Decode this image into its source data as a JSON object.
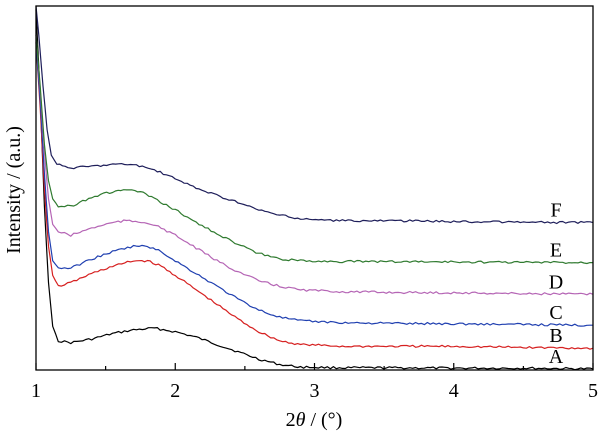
{
  "chart_data": {
    "type": "line",
    "xlabel": {
      "prefix": "2",
      "symbol": "θ",
      "suffix": " / (°)"
    },
    "ylabel": "Intensity / (a.u.)",
    "xlim": [
      1,
      5
    ],
    "ylim": [
      0,
      1
    ],
    "x_ticks": [
      1,
      2,
      3,
      4,
      5
    ],
    "y_ticks_shown": false,
    "grid": false,
    "series": [
      {
        "name": "A",
        "color": "#000000",
        "points": [
          [
            1.0,
            0.99
          ],
          [
            1.03,
            0.75
          ],
          [
            1.06,
            0.45
          ],
          [
            1.09,
            0.24
          ],
          [
            1.12,
            0.12
          ],
          [
            1.16,
            0.08
          ],
          [
            1.25,
            0.075
          ],
          [
            1.4,
            0.085
          ],
          [
            1.55,
            0.1
          ],
          [
            1.7,
            0.11
          ],
          [
            1.85,
            0.115
          ],
          [
            2.0,
            0.105
          ],
          [
            2.15,
            0.09
          ],
          [
            2.3,
            0.07
          ],
          [
            2.45,
            0.05
          ],
          [
            2.6,
            0.03
          ],
          [
            2.75,
            0.015
          ],
          [
            2.9,
            0.008
          ],
          [
            3.2,
            0.006
          ],
          [
            3.6,
            0.006
          ],
          [
            4.0,
            0.005
          ],
          [
            4.5,
            0.005
          ],
          [
            5.0,
            0.003
          ]
        ]
      },
      {
        "name": "B",
        "color": "#d62020",
        "points": [
          [
            1.0,
            0.9
          ],
          [
            1.03,
            0.72
          ],
          [
            1.06,
            0.5
          ],
          [
            1.09,
            0.34
          ],
          [
            1.12,
            0.26
          ],
          [
            1.16,
            0.23
          ],
          [
            1.25,
            0.24
          ],
          [
            1.4,
            0.265
          ],
          [
            1.55,
            0.285
          ],
          [
            1.7,
            0.3
          ],
          [
            1.8,
            0.3
          ],
          [
            1.9,
            0.285
          ],
          [
            2.0,
            0.26
          ],
          [
            2.15,
            0.22
          ],
          [
            2.3,
            0.18
          ],
          [
            2.45,
            0.14
          ],
          [
            2.6,
            0.105
          ],
          [
            2.75,
            0.08
          ],
          [
            2.9,
            0.07
          ],
          [
            3.2,
            0.065
          ],
          [
            3.6,
            0.065
          ],
          [
            4.0,
            0.065
          ],
          [
            4.5,
            0.062
          ],
          [
            5.0,
            0.06
          ]
        ]
      },
      {
        "name": "C",
        "color": "#1f3fb0",
        "points": [
          [
            1.0,
            0.9
          ],
          [
            1.03,
            0.74
          ],
          [
            1.06,
            0.54
          ],
          [
            1.09,
            0.38
          ],
          [
            1.12,
            0.3
          ],
          [
            1.16,
            0.28
          ],
          [
            1.25,
            0.28
          ],
          [
            1.4,
            0.305
          ],
          [
            1.55,
            0.325
          ],
          [
            1.7,
            0.34
          ],
          [
            1.8,
            0.34
          ],
          [
            1.9,
            0.325
          ],
          [
            2.0,
            0.3
          ],
          [
            2.15,
            0.265
          ],
          [
            2.3,
            0.23
          ],
          [
            2.45,
            0.195
          ],
          [
            2.6,
            0.165
          ],
          [
            2.75,
            0.145
          ],
          [
            2.9,
            0.135
          ],
          [
            3.2,
            0.13
          ],
          [
            3.6,
            0.128
          ],
          [
            4.0,
            0.127
          ],
          [
            4.5,
            0.125
          ],
          [
            5.0,
            0.123
          ]
        ]
      },
      {
        "name": "D",
        "color": "#b565b5",
        "points": [
          [
            1.0,
            0.92
          ],
          [
            1.03,
            0.77
          ],
          [
            1.06,
            0.6
          ],
          [
            1.09,
            0.47
          ],
          [
            1.12,
            0.4
          ],
          [
            1.16,
            0.38
          ],
          [
            1.25,
            0.37
          ],
          [
            1.4,
            0.39
          ],
          [
            1.55,
            0.405
          ],
          [
            1.65,
            0.41
          ],
          [
            1.8,
            0.405
          ],
          [
            1.9,
            0.39
          ],
          [
            2.0,
            0.37
          ],
          [
            2.15,
            0.335
          ],
          [
            2.3,
            0.3
          ],
          [
            2.45,
            0.27
          ],
          [
            2.6,
            0.245
          ],
          [
            2.75,
            0.23
          ],
          [
            2.9,
            0.22
          ],
          [
            3.2,
            0.215
          ],
          [
            3.6,
            0.213
          ],
          [
            4.0,
            0.212
          ],
          [
            4.5,
            0.21
          ],
          [
            5.0,
            0.208
          ]
        ]
      },
      {
        "name": "E",
        "color": "#2f7a2f",
        "points": [
          [
            1.0,
            0.92
          ],
          [
            1.03,
            0.78
          ],
          [
            1.06,
            0.62
          ],
          [
            1.09,
            0.52
          ],
          [
            1.12,
            0.47
          ],
          [
            1.16,
            0.45
          ],
          [
            1.25,
            0.45
          ],
          [
            1.4,
            0.475
          ],
          [
            1.55,
            0.49
          ],
          [
            1.65,
            0.495
          ],
          [
            1.75,
            0.49
          ],
          [
            1.85,
            0.47
          ],
          [
            2.0,
            0.44
          ],
          [
            2.15,
            0.405
          ],
          [
            2.3,
            0.375
          ],
          [
            2.45,
            0.345
          ],
          [
            2.6,
            0.32
          ],
          [
            2.75,
            0.305
          ],
          [
            2.9,
            0.3
          ],
          [
            3.2,
            0.298
          ],
          [
            3.6,
            0.298
          ],
          [
            4.0,
            0.297
          ],
          [
            4.5,
            0.296
          ],
          [
            5.0,
            0.295
          ]
        ]
      },
      {
        "name": "F",
        "color": "#1e1e5a",
        "points": [
          [
            1.0,
            1.0
          ],
          [
            1.02,
            0.92
          ],
          [
            1.05,
            0.78
          ],
          [
            1.08,
            0.66
          ],
          [
            1.11,
            0.59
          ],
          [
            1.15,
            0.565
          ],
          [
            1.25,
            0.555
          ],
          [
            1.4,
            0.56
          ],
          [
            1.55,
            0.565
          ],
          [
            1.7,
            0.565
          ],
          [
            1.85,
            0.55
          ],
          [
            2.0,
            0.525
          ],
          [
            2.15,
            0.5
          ],
          [
            2.3,
            0.48
          ],
          [
            2.45,
            0.46
          ],
          [
            2.6,
            0.44
          ],
          [
            2.75,
            0.425
          ],
          [
            2.9,
            0.415
          ],
          [
            3.2,
            0.41
          ],
          [
            3.6,
            0.41
          ],
          [
            4.0,
            0.408
          ],
          [
            4.5,
            0.406
          ],
          [
            5.0,
            0.405
          ]
        ]
      }
    ],
    "series_label_positions": "right end, stacked"
  }
}
